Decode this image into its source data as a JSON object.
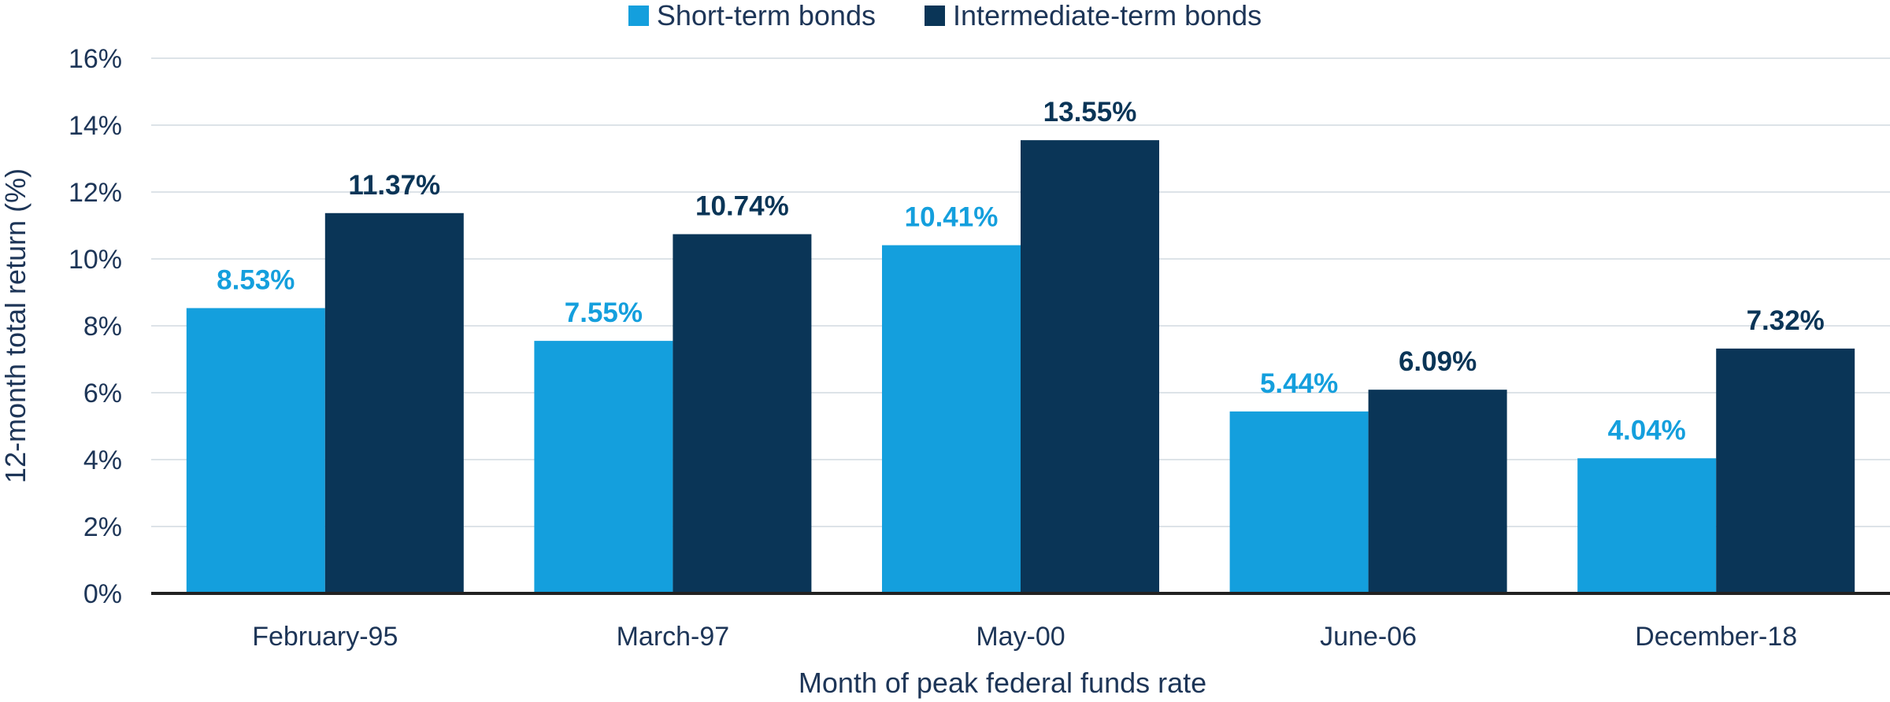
{
  "chart_data": {
    "type": "bar",
    "categories": [
      "February-95",
      "March-97",
      "May-00",
      "June-06",
      "December-18"
    ],
    "series": [
      {
        "name": "Short-term bonds",
        "color": "#149fdd",
        "values": [
          8.53,
          7.55,
          10.41,
          5.44,
          4.04
        ],
        "labels": [
          "8.53%",
          "7.55%",
          "10.41%",
          "5.44%",
          "4.04%"
        ]
      },
      {
        "name": "Intermediate-term bonds",
        "color": "#0a3557",
        "values": [
          11.37,
          10.74,
          13.55,
          6.09,
          7.32
        ],
        "labels": [
          "11.37%",
          "10.74%",
          "13.55%",
          "6.09%",
          "7.32%"
        ]
      }
    ],
    "xlabel": "Month of peak federal funds rate",
    "ylabel": "12-month total return (%)",
    "ylim": [
      0,
      16
    ],
    "yticks": [
      "0%",
      "2%",
      "4%",
      "6%",
      "8%",
      "10%",
      "12%",
      "14%",
      "16%"
    ],
    "grid": true,
    "legend_position": "top-center"
  }
}
